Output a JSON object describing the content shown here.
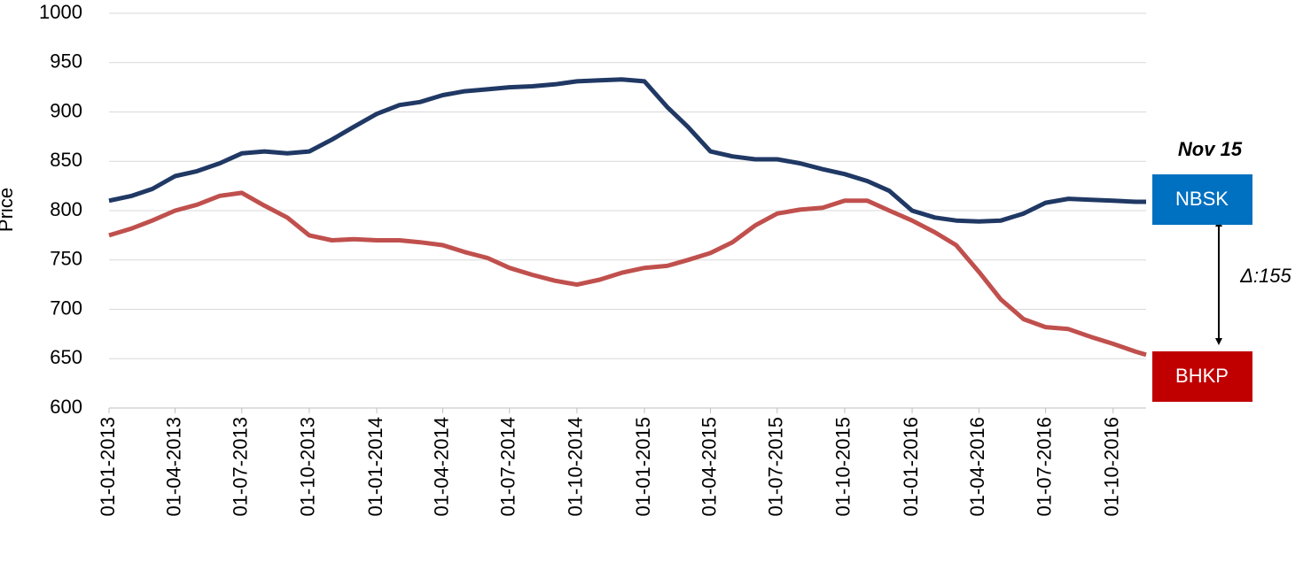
{
  "chart_data": {
    "type": "line",
    "y_label": "Price",
    "annotations": {
      "date": "Nov 15",
      "delta": "Δ:155"
    },
    "x": [
      "01-01-2013",
      "01-02-2013",
      "01-03-2013",
      "01-04-2013",
      "01-05-2013",
      "01-06-2013",
      "01-07-2013",
      "01-08-2013",
      "01-09-2013",
      "01-10-2013",
      "01-11-2013",
      "01-12-2013",
      "01-01-2014",
      "01-02-2014",
      "01-03-2014",
      "01-04-2014",
      "01-05-2014",
      "01-06-2014",
      "01-07-2014",
      "01-08-2014",
      "01-09-2014",
      "01-10-2014",
      "01-11-2014",
      "01-12-2014",
      "01-01-2015",
      "01-02-2015",
      "01-03-2015",
      "01-04-2015",
      "01-05-2015",
      "01-06-2015",
      "01-07-2015",
      "01-08-2015",
      "01-09-2015",
      "01-10-2015",
      "01-11-2015",
      "01-12-2015",
      "01-01-2016",
      "01-02-2016",
      "01-03-2016",
      "01-04-2016",
      "01-05-2016",
      "01-06-2016",
      "01-07-2016",
      "01-08-2016",
      "01-09-2016",
      "01-10-2016",
      "01-11-2016",
      "15-11-2016"
    ],
    "series": [
      {
        "name": "NBSK",
        "color": "#203864",
        "label_color": "#0070c0",
        "values": [
          810,
          815,
          822,
          835,
          840,
          848,
          858,
          860,
          858,
          860,
          872,
          885,
          898,
          907,
          910,
          917,
          921,
          923,
          925,
          926,
          928,
          931,
          932,
          933,
          931,
          905,
          885,
          860,
          855,
          852,
          852,
          848,
          842,
          837,
          830,
          820,
          800,
          793,
          790,
          789,
          790,
          797,
          808,
          812,
          811,
          810,
          809,
          809
        ]
      },
      {
        "name": "BHKP",
        "color": "#c0504d",
        "label_color": "#c00000",
        "values": [
          775,
          782,
          790,
          800,
          806,
          815,
          818,
          805,
          793,
          775,
          770,
          771,
          770,
          770,
          768,
          765,
          758,
          752,
          742,
          735,
          729,
          725,
          730,
          737,
          742,
          744,
          750,
          757,
          768,
          785,
          797,
          801,
          803,
          810,
          810,
          800,
          790,
          778,
          765,
          738,
          710,
          690,
          682,
          680,
          672,
          665,
          657,
          654
        ]
      }
    ],
    "xlim": [
      "01-01-2013",
      "15-11-2016"
    ],
    "xticks": [
      "01-01-2013",
      "01-04-2013",
      "01-07-2013",
      "01-10-2013",
      "01-01-2014",
      "01-04-2014",
      "01-07-2014",
      "01-10-2014",
      "01-01-2015",
      "01-04-2015",
      "01-07-2015",
      "01-10-2015",
      "01-01-2016",
      "01-04-2016",
      "01-07-2016",
      "01-10-2016"
    ],
    "ylim": [
      600,
      1000
    ],
    "yticks": [
      600,
      650,
      700,
      750,
      800,
      850,
      900,
      950,
      1000
    ],
    "grid": true
  }
}
